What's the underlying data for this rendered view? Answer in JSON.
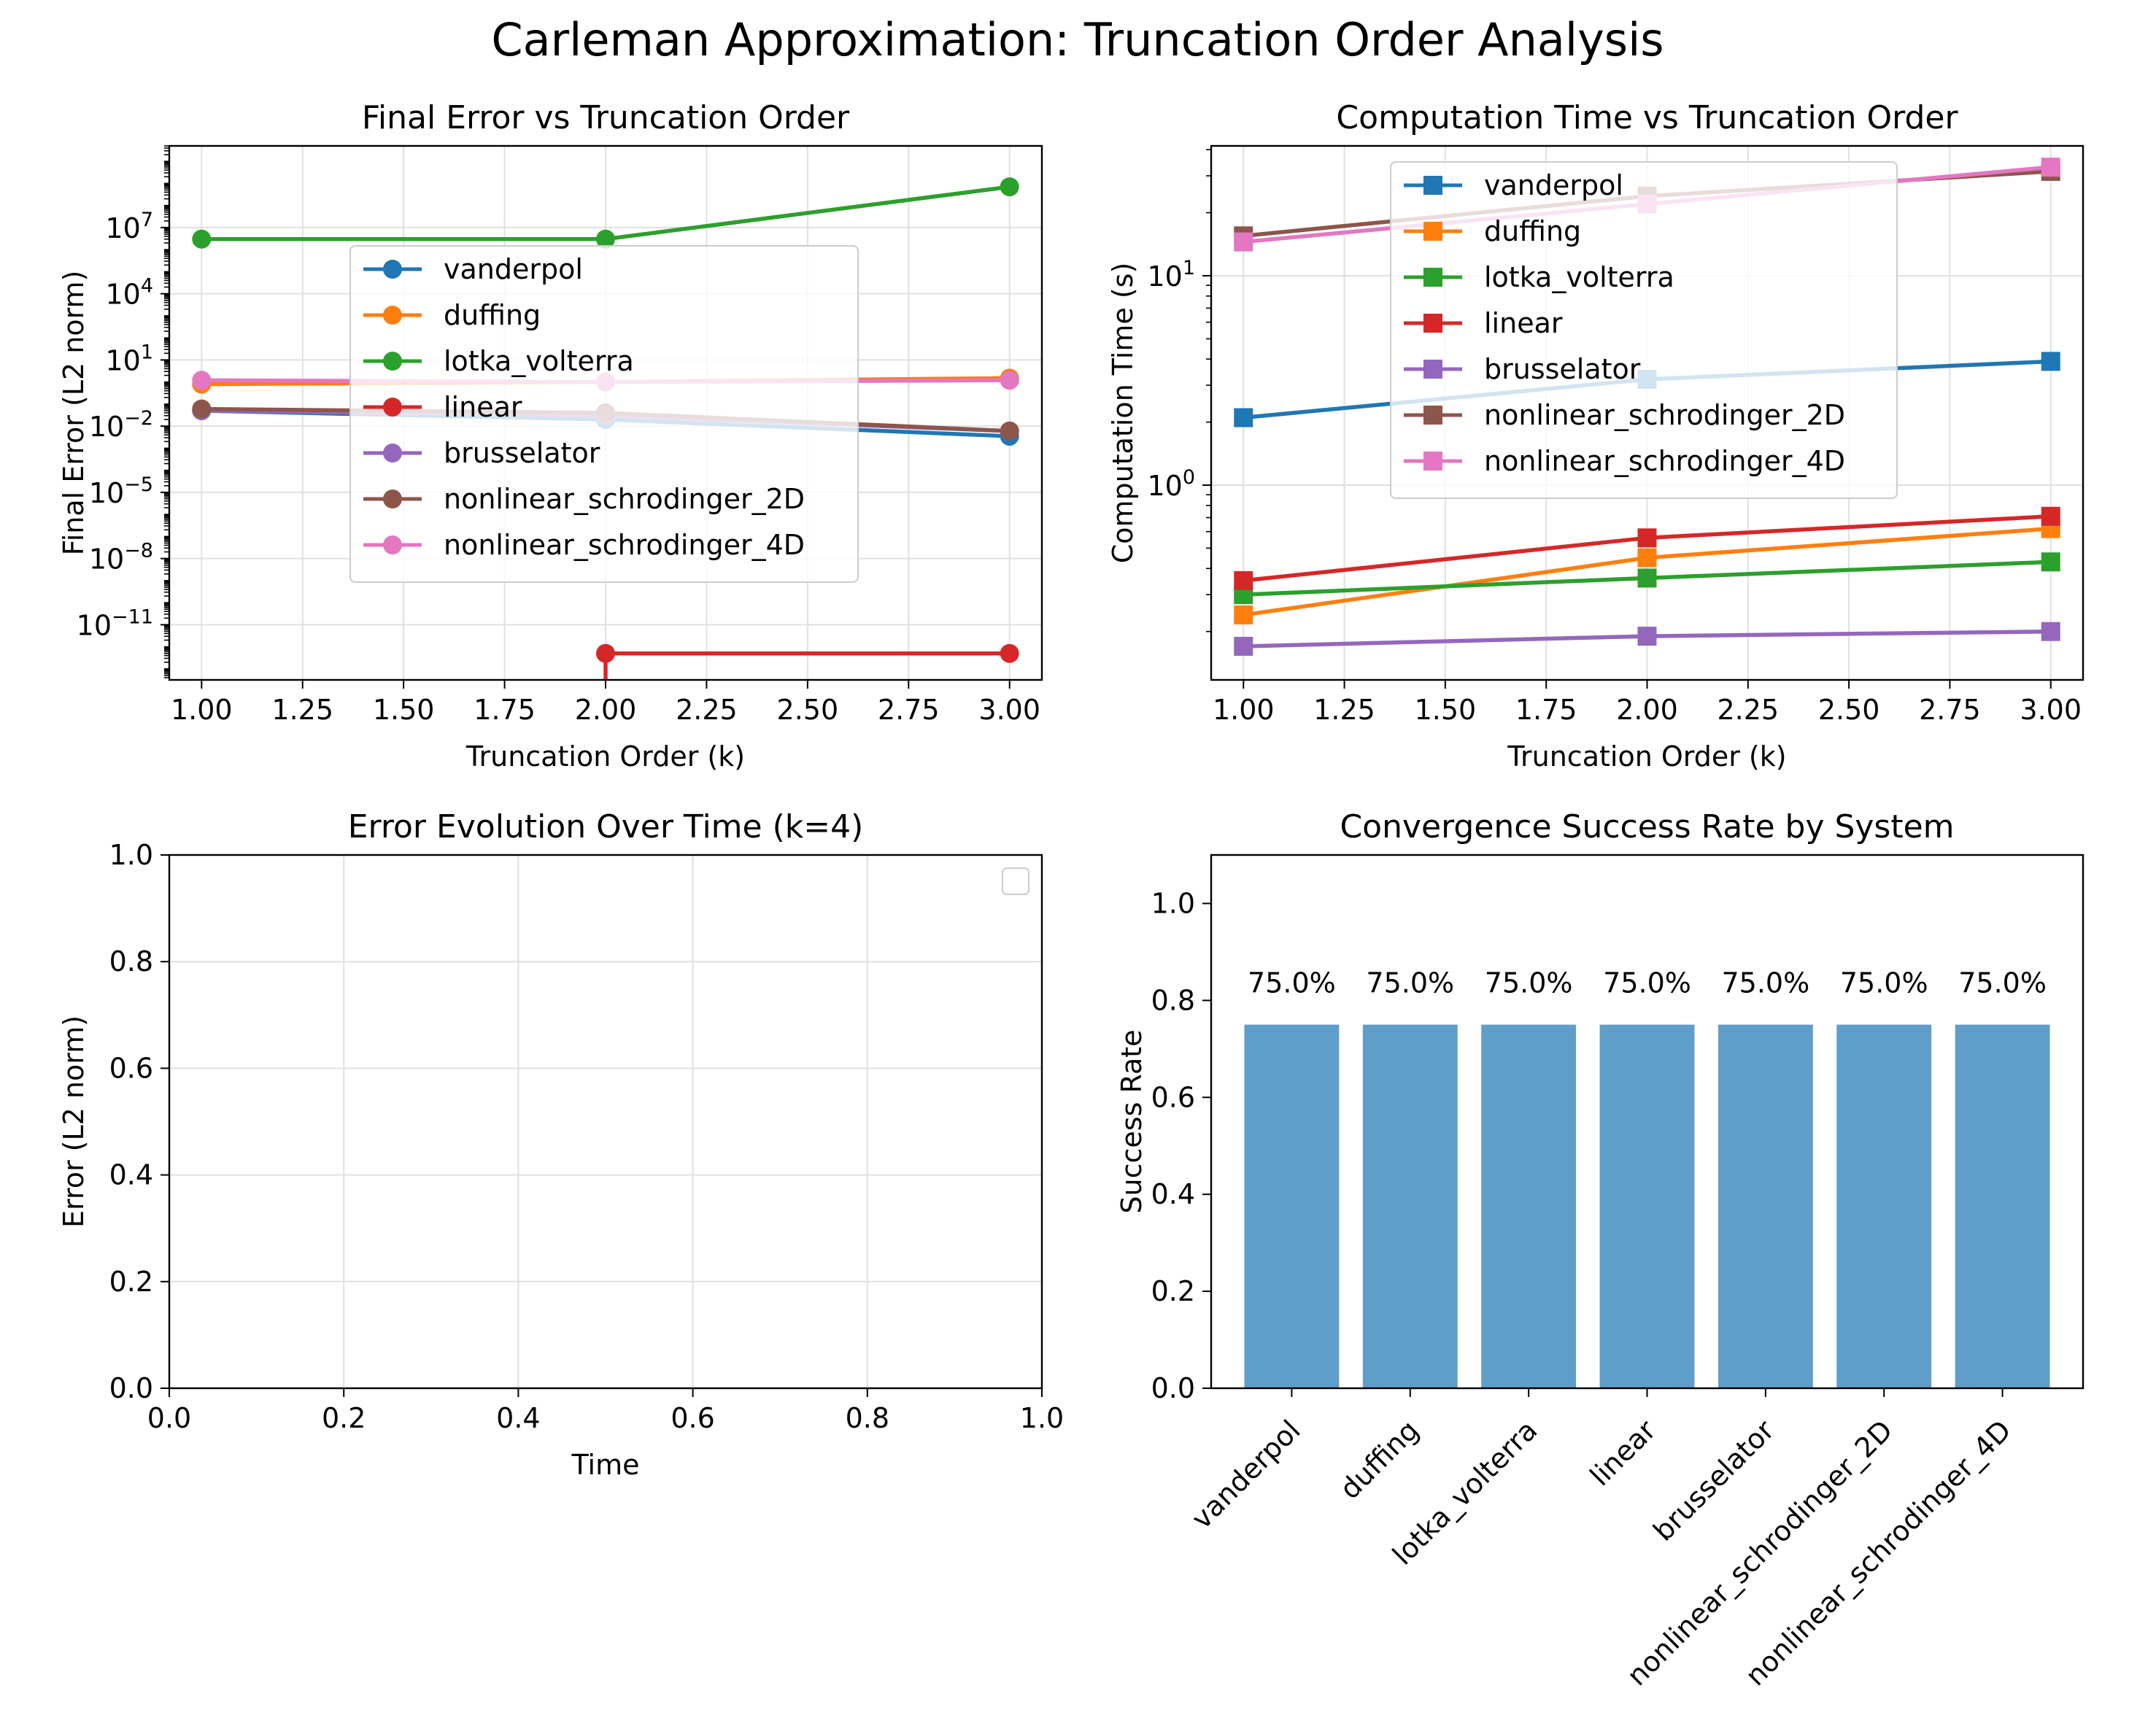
{
  "figure_title": "Carleman Approximation: Truncation Order Analysis",
  "colors": {
    "vanderpol": "#1f77b4",
    "duffing": "#ff7f0e",
    "lotka_volterra": "#2ca02c",
    "linear": "#d62728",
    "brusselator": "#9467bd",
    "nonlinear_schrodinger_2D": "#8c564b",
    "nonlinear_schrodinger_4D": "#e377c2",
    "bar": "#5f9ec9",
    "grid": "#e0e0e0"
  },
  "chart_data": [
    {
      "id": "error",
      "type": "line",
      "title": "Final Error vs Truncation Order",
      "xlabel": "Truncation Order (k)",
      "ylabel": "Final Error (L2 norm)",
      "yscale": "log",
      "xlim": [
        0.92,
        3.08
      ],
      "ylim_log10": [
        -13.5,
        10.7
      ],
      "xticks": [
        1.0,
        1.25,
        1.5,
        1.75,
        2.0,
        2.25,
        2.5,
        2.75,
        3.0
      ],
      "xtick_labels": [
        "1.00",
        "1.25",
        "1.50",
        "1.75",
        "2.00",
        "2.25",
        "2.50",
        "2.75",
        "3.00"
      ],
      "yticks_exp": [
        7,
        4,
        1,
        -2,
        -5,
        -8,
        -11
      ],
      "ytick_base": "10",
      "ytick_exps": [
        "7",
        "4",
        "1",
        "−2",
        "−5",
        "−8",
        "−11"
      ],
      "marker": "circle",
      "grid": true,
      "legend_loc": "center",
      "series": [
        {
          "name": "vanderpol",
          "x": [
            1,
            2,
            3
          ],
          "y": [
            0.05,
            0.02,
            0.0035
          ]
        },
        {
          "name": "duffing",
          "x": [
            1,
            2,
            3
          ],
          "y": [
            0.8,
            1.0,
            1.5
          ]
        },
        {
          "name": "lotka_volterra",
          "x": [
            1,
            2,
            3
          ],
          "y": [
            3000000,
            3000000,
            700000000
          ]
        },
        {
          "name": "linear",
          "x": [
            2,
            3
          ],
          "y": [
            5e-13,
            5e-13
          ],
          "drop_from_x": 2
        },
        {
          "name": "brusselator",
          "x": [
            1,
            2,
            3
          ],
          "y": [
            0.05,
            0.03,
            0.006
          ]
        },
        {
          "name": "nonlinear_schrodinger_2D",
          "x": [
            1,
            2,
            3
          ],
          "y": [
            0.06,
            0.04,
            0.006
          ]
        },
        {
          "name": "nonlinear_schrodinger_4D",
          "x": [
            1,
            2,
            3
          ],
          "y": [
            1.2,
            1.0,
            1.2
          ]
        }
      ]
    },
    {
      "id": "time",
      "type": "line",
      "title": "Computation Time vs Truncation Order",
      "xlabel": "Truncation Order (k)",
      "ylabel": "Computation Time (s)",
      "yscale": "log",
      "xlim": [
        0.92,
        3.08
      ],
      "ylim_log10": [
        -0.93,
        1.62
      ],
      "xticks": [
        1.0,
        1.25,
        1.5,
        1.75,
        2.0,
        2.25,
        2.5,
        2.75,
        3.0
      ],
      "xtick_labels": [
        "1.00",
        "1.25",
        "1.50",
        "1.75",
        "2.00",
        "2.25",
        "2.50",
        "2.75",
        "3.00"
      ],
      "yticks_exp": [
        1,
        0
      ],
      "ytick_base": "10",
      "ytick_exps": [
        "1",
        "0"
      ],
      "marker": "square",
      "grid": true,
      "legend_loc": "upper center",
      "series": [
        {
          "name": "vanderpol",
          "x": [
            1,
            2,
            3
          ],
          "y": [
            2.1,
            3.2,
            3.9
          ]
        },
        {
          "name": "duffing",
          "x": [
            1,
            2,
            3
          ],
          "y": [
            0.24,
            0.45,
            0.62
          ]
        },
        {
          "name": "lotka_volterra",
          "x": [
            1,
            2,
            3
          ],
          "y": [
            0.3,
            0.36,
            0.43
          ]
        },
        {
          "name": "linear",
          "x": [
            1,
            2,
            3
          ],
          "y": [
            0.35,
            0.56,
            0.71
          ]
        },
        {
          "name": "brusselator",
          "x": [
            1,
            2,
            3
          ],
          "y": [
            0.17,
            0.19,
            0.2
          ]
        },
        {
          "name": "nonlinear_schrodinger_2D",
          "x": [
            1,
            2,
            3
          ],
          "y": [
            15.5,
            24.0,
            31.5
          ]
        },
        {
          "name": "nonlinear_schrodinger_4D",
          "x": [
            1,
            2,
            3
          ],
          "y": [
            14.5,
            22.0,
            33.0
          ]
        }
      ]
    },
    {
      "id": "evolution",
      "type": "line",
      "title": "Error Evolution Over Time (k=4)",
      "xlabel": "Time",
      "ylabel": "Error (L2 norm)",
      "xlim": [
        0,
        1
      ],
      "ylim": [
        0,
        1
      ],
      "xticks": [
        0,
        0.2,
        0.4,
        0.6,
        0.8,
        1.0
      ],
      "xtick_labels": [
        "0.0",
        "0.2",
        "0.4",
        "0.6",
        "0.8",
        "1.0"
      ],
      "yticks": [
        0,
        0.2,
        0.4,
        0.6,
        0.8,
        1.0
      ],
      "ytick_labels": [
        "0.0",
        "0.2",
        "0.4",
        "0.6",
        "0.8",
        "1.0"
      ],
      "grid": true,
      "legend_loc": "upper right",
      "series": []
    },
    {
      "id": "success",
      "type": "bar",
      "title": "Convergence Success Rate by System",
      "xlabel": "",
      "ylabel": "Success Rate",
      "ylim": [
        0,
        1.1
      ],
      "yticks": [
        0,
        0.2,
        0.4,
        0.6,
        0.8,
        1.0
      ],
      "ytick_labels": [
        "0.0",
        "0.2",
        "0.4",
        "0.6",
        "0.8",
        "1.0"
      ],
      "categories": [
        "vanderpol",
        "duffing",
        "lotka_volterra",
        "linear",
        "brusselator",
        "nonlinear_schrodinger_2D",
        "nonlinear_schrodinger_4D"
      ],
      "values": [
        0.75,
        0.75,
        0.75,
        0.75,
        0.75,
        0.75,
        0.75
      ],
      "data_labels": [
        "75.0%",
        "75.0%",
        "75.0%",
        "75.0%",
        "75.0%",
        "75.0%",
        "75.0%"
      ],
      "xtick_rotation": 45,
      "grid": false
    }
  ]
}
